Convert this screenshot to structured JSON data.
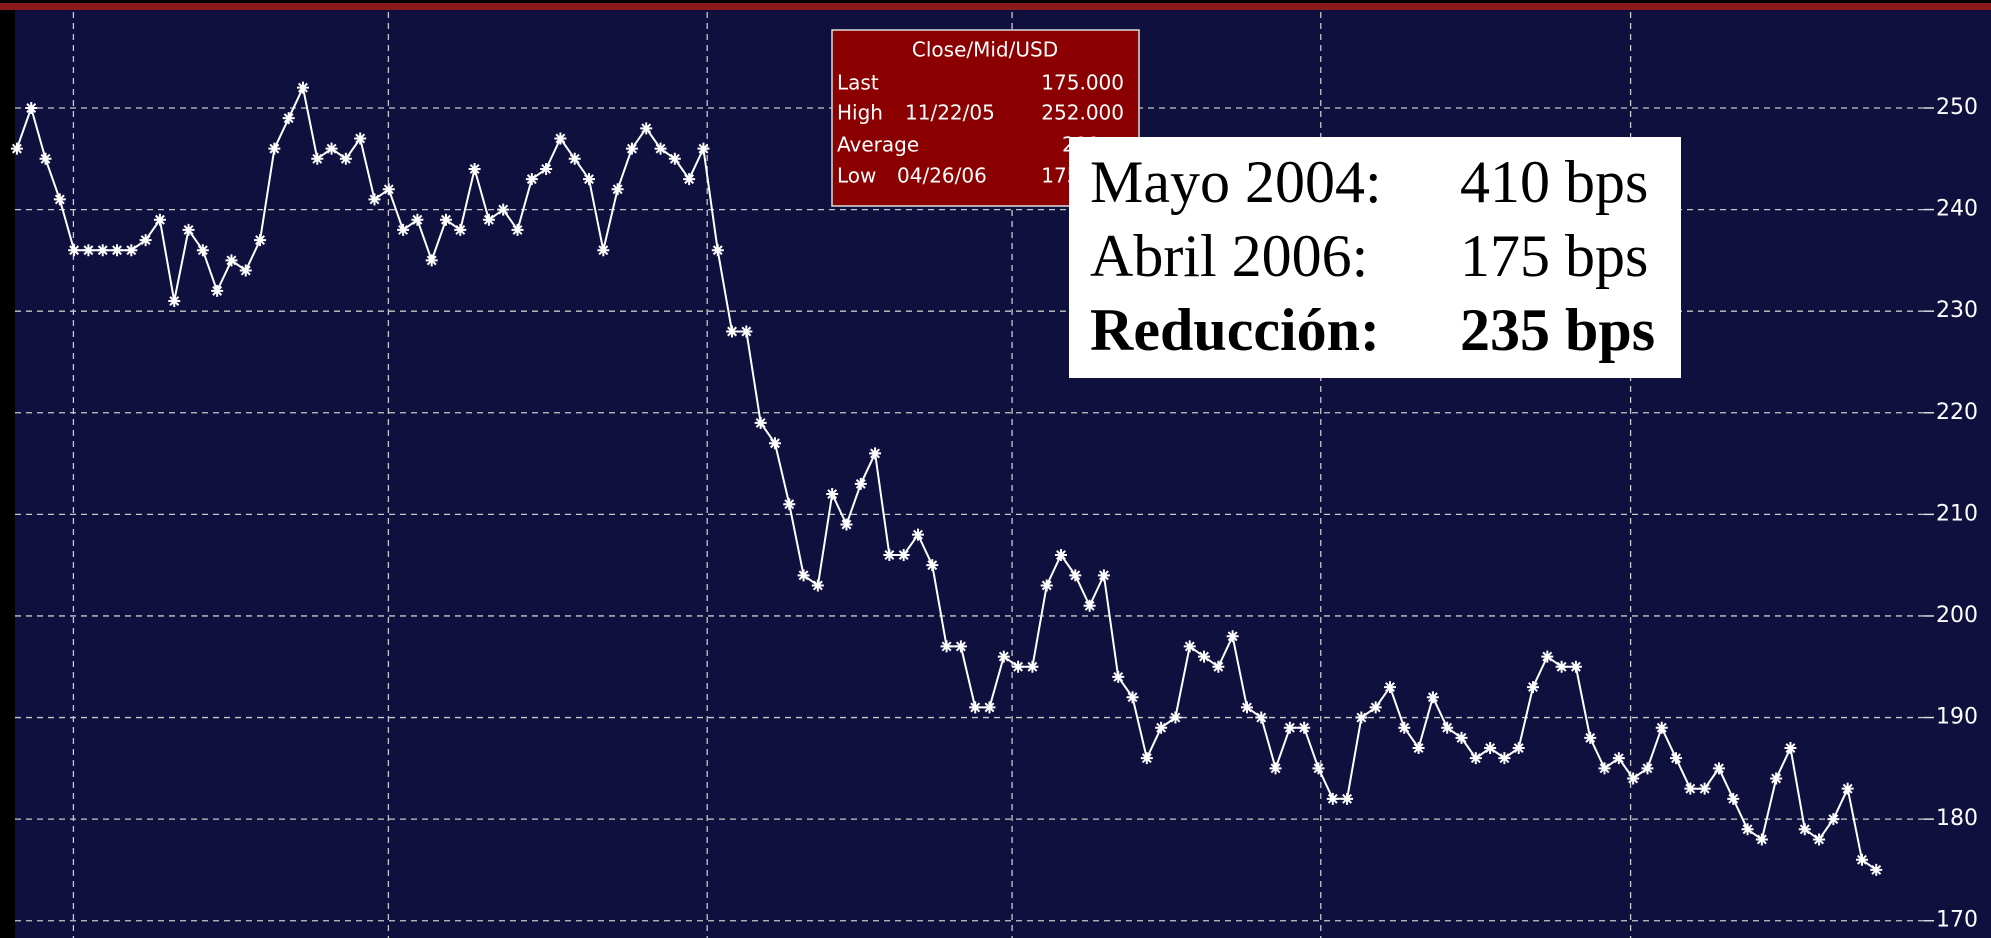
{
  "chart_data": {
    "type": "line",
    "legend": {
      "title": "Close/Mid/USD",
      "rows": [
        {
          "label": "Last",
          "date": null,
          "value": "175.000"
        },
        {
          "label": "High",
          "date": "11/22/05",
          "value": "252.000"
        },
        {
          "label": "Average",
          "date": null,
          "value": "211"
        },
        {
          "label": "Low",
          "date": "04/26/06",
          "value": "175.000"
        }
      ]
    },
    "annotation": {
      "rows": [
        {
          "label": "Mayo 2004:",
          "value": "410 bps"
        },
        {
          "label": "Abril 2006:",
          "value": "175 bps"
        },
        {
          "label": "Reducción:",
          "value": "235 bps"
        }
      ]
    },
    "series": [
      {
        "name": "Close/Mid/USD",
        "color": "#ffffff",
        "values": [
          246,
          250,
          245,
          241,
          236,
          236,
          236,
          236,
          236,
          237,
          239,
          231,
          238,
          236,
          232,
          235,
          234,
          237,
          246,
          249,
          252,
          245,
          246,
          245,
          247,
          241,
          242,
          238,
          239,
          235,
          239,
          238,
          244,
          239,
          240,
          238,
          243,
          244,
          247,
          245,
          243,
          236,
          242,
          246,
          248,
          246,
          245,
          243,
          246,
          236,
          228,
          228,
          219,
          217,
          211,
          204,
          203,
          212,
          209,
          213,
          216,
          206,
          206,
          208,
          205,
          197,
          197,
          191,
          191,
          196,
          195,
          195,
          203,
          206,
          204,
          201,
          204,
          194,
          192,
          186,
          189,
          190,
          197,
          196,
          195,
          198,
          191,
          190,
          185,
          189,
          189,
          185,
          182,
          182,
          190,
          191,
          193,
          189,
          187,
          192,
          189,
          188,
          186,
          187,
          186,
          187,
          193,
          196,
          195,
          195,
          188,
          185,
          186,
          184,
          185,
          189,
          186,
          183,
          183,
          185,
          182,
          179,
          178,
          184,
          187,
          179,
          178,
          180,
          183,
          176,
          175
        ]
      }
    ],
    "ylim": [
      168.3,
      259.45
    ],
    "yticks": [
      170,
      180,
      190,
      200,
      210,
      220,
      230,
      240,
      250
    ],
    "grid": true
  }
}
